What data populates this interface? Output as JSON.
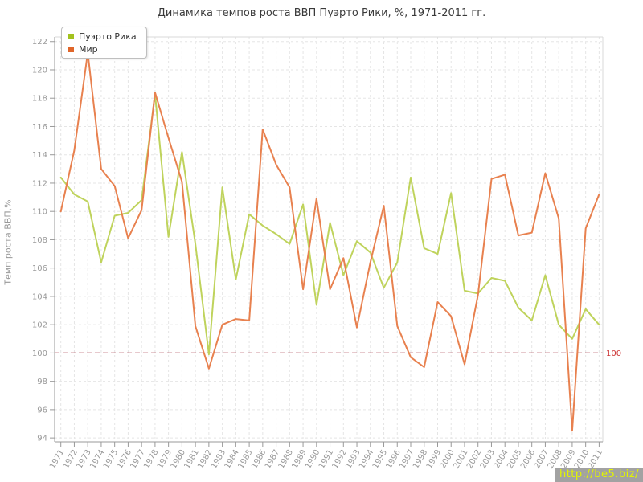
{
  "title": "Динамика темпов роста ВВП Пуэрто Рики, %, 1971-2011 гг.",
  "y_axis": {
    "label": "Темп роста ВВП,%",
    "min": 94,
    "max": 122,
    "step": 2
  },
  "legend": [
    {
      "label": "Пуэрто Рика",
      "color": "#a3c21e"
    },
    {
      "label": "Мир",
      "color": "#e0662a"
    }
  ],
  "reference_line": {
    "value": 100,
    "label": "100",
    "line_color": "#a12c3c",
    "label_color": "#cc3333"
  },
  "watermark": {
    "text": "http://be5.biz/"
  },
  "colors": {
    "grid": "#e5e5e5",
    "axis": "#999999",
    "tick_text": "#999999"
  },
  "chart_data": {
    "type": "line",
    "title": "Динамика темпов роста ВВП Пуэрто Рики, %, 1971-2011 гг.",
    "xlabel": "",
    "ylabel": "Темп роста ВВП,%",
    "ylim": [
      94,
      122
    ],
    "ytick_step": 2,
    "grid": true,
    "legend_position": "top-left",
    "reference_value": 100,
    "x": [
      1971,
      1972,
      1973,
      1974,
      1975,
      1976,
      1977,
      1978,
      1979,
      1980,
      1981,
      1982,
      1983,
      1984,
      1985,
      1986,
      1987,
      1988,
      1989,
      1990,
      1991,
      1992,
      1993,
      1994,
      1995,
      1996,
      1997,
      1998,
      1999,
      2000,
      2001,
      2002,
      2003,
      2004,
      2005,
      2006,
      2007,
      2008,
      2009,
      2010,
      2011
    ],
    "series": [
      {
        "name": "Пуэрто Рика",
        "color": "#bfd35c",
        "values": [
          112.4,
          111.2,
          110.7,
          106.4,
          109.7,
          109.9,
          110.8,
          118.3,
          108.2,
          114.2,
          107.7,
          99.9,
          111.7,
          105.2,
          109.8,
          109.0,
          108.4,
          107.7,
          110.5,
          103.4,
          109.2,
          105.5,
          107.9,
          107.1,
          104.6,
          106.4,
          112.4,
          107.4,
          107.0,
          111.3,
          104.4,
          104.2,
          105.3,
          105.1,
          103.2,
          102.3,
          105.5,
          102.0,
          101.0,
          103.1,
          102.0
        ]
      },
      {
        "name": "Мир",
        "color": "#e8814f",
        "values": [
          110.0,
          114.3,
          121.2,
          113.0,
          111.8,
          108.1,
          110.1,
          118.4,
          115.2,
          112.1,
          101.9,
          98.9,
          102.0,
          102.4,
          102.3,
          115.8,
          113.3,
          111.7,
          104.5,
          110.9,
          104.5,
          106.7,
          101.8,
          106.4,
          110.4,
          101.9,
          99.7,
          99.0,
          103.6,
          102.6,
          99.2,
          104.1,
          112.3,
          112.6,
          108.3,
          108.5,
          112.7,
          109.5,
          94.5,
          108.8,
          111.2
        ]
      }
    ]
  }
}
